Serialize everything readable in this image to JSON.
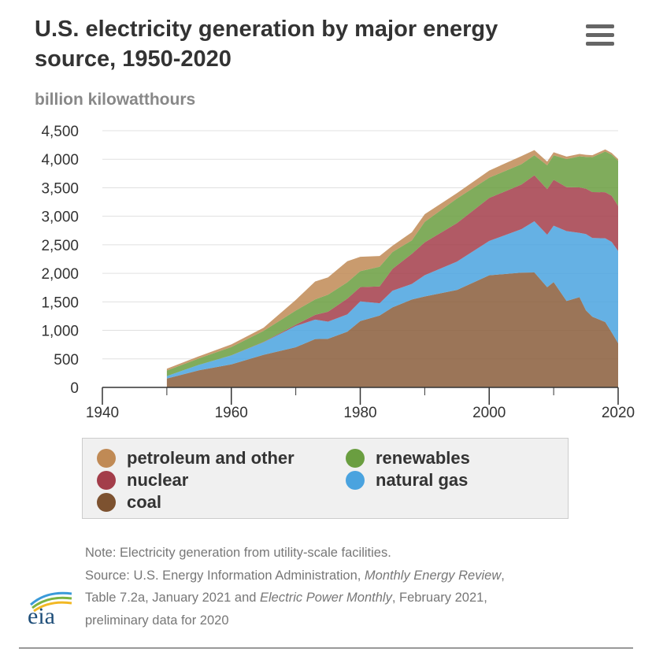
{
  "title": "U.S. electricity generation by major energy source, 1950-2020",
  "menu_icon": "hamburger-menu-icon",
  "unit_label": "billion kilowatthours",
  "chart_data": {
    "type": "area",
    "stacked": true,
    "title": "U.S. electricity generation by major energy source, 1950-2020",
    "xlabel": "",
    "ylabel": "billion kilowatthours",
    "xlim": [
      1940,
      2020
    ],
    "ylim": [
      0,
      4500
    ],
    "x_ticks": [
      "1940",
      "1960",
      "1980",
      "2000",
      "2020"
    ],
    "y_ticks": [
      "0",
      "500",
      "1,000",
      "1,500",
      "2,000",
      "2,500",
      "3,000",
      "3,500",
      "4,000",
      "4,500"
    ],
    "grid": true,
    "legend_position": "bottom",
    "x": [
      1950,
      1955,
      1960,
      1965,
      1970,
      1973,
      1975,
      1978,
      1980,
      1983,
      1985,
      1988,
      1990,
      1995,
      2000,
      2005,
      2007,
      2009,
      2010,
      2012,
      2014,
      2015,
      2016,
      2018,
      2019,
      2020
    ],
    "series": [
      {
        "name": "coal",
        "color": "#8a5d3b",
        "values": [
          154,
          301,
          403,
          571,
          704,
          848,
          853,
          976,
          1162,
          1259,
          1402,
          1541,
          1594,
          1709,
          1966,
          2013,
          2016,
          1756,
          1847,
          1514,
          1582,
          1352,
          1239,
          1146,
          965,
          774
        ]
      },
      {
        "name": "natural gas",
        "color": "#4aa3df",
        "values": [
          45,
          95,
          158,
          222,
          373,
          341,
          300,
          305,
          346,
          217,
          292,
          273,
          373,
          497,
          601,
          761,
          897,
          921,
          988,
          1226,
          1127,
          1335,
          1379,
          1469,
          1586,
          1617
        ]
      },
      {
        "name": "nuclear",
        "color": "#a33d4a",
        "values": [
          0,
          0,
          1,
          4,
          22,
          83,
          173,
          276,
          251,
          294,
          384,
          527,
          577,
          673,
          754,
          782,
          806,
          799,
          807,
          769,
          797,
          797,
          806,
          807,
          809,
          790
        ]
      },
      {
        "name": "renewables",
        "color": "#6a9e40",
        "values": [
          96,
          113,
          146,
          194,
          248,
          270,
          300,
          286,
          279,
          346,
          295,
          238,
          357,
          433,
          356,
          358,
          352,
          418,
          427,
          494,
          546,
          557,
          612,
          714,
          720,
          792
        ]
      },
      {
        "name": "petroleum and other",
        "color": "#c08a55",
        "values": [
          34,
          38,
          45,
          56,
          187,
          315,
          304,
          368,
          252,
          188,
          110,
          140,
          136,
          93,
          124,
          141,
          90,
          64,
          53,
          43,
          41,
          36,
          35,
          37,
          30,
          30
        ]
      }
    ]
  },
  "legend": [
    {
      "label": "petroleum and other",
      "color": "#c08a55",
      "icon": "circle-marker"
    },
    {
      "label": "renewables",
      "color": "#6a9e40",
      "icon": "circle-marker"
    },
    {
      "label": "nuclear",
      "color": "#a33d4a",
      "icon": "circle-marker"
    },
    {
      "label": "natural gas",
      "color": "#4aa3df",
      "icon": "circle-marker"
    },
    {
      "label": "coal",
      "color": "#8a5d3b",
      "icon": "circle-marker"
    }
  ],
  "notes": {
    "note": "Note: Electricity generation from utility-scale facilities.",
    "source_prefix": "Source: U.S. Energy Information Administration, ",
    "source_pub1": "Monthly Energy Review",
    "source_mid": ",",
    "source_line2_a": "Table 7.2a, January 2021 and ",
    "source_pub2": "Electric Power Monthly",
    "source_line2_b": ", February 2021,",
    "source_line3": "preliminary data for 2020"
  },
  "logo": {
    "text": "eia",
    "icon": "eia-logo-icon"
  }
}
